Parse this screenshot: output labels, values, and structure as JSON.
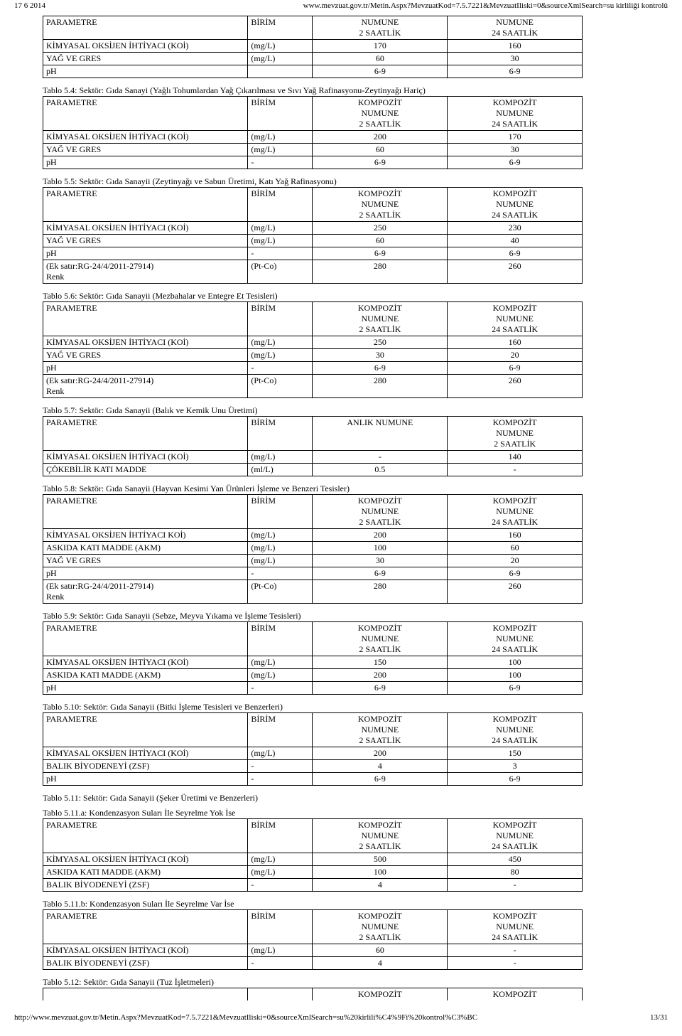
{
  "header": {
    "date": "17 6 2014",
    "url": "www.mevzuat.gov.tr/Metin.Aspx?MevzuatKod=7.5.7221&MevzuatIliski=0&sourceXmlSearch=su kirliliği kontrolü"
  },
  "footer": {
    "url": "http://www.mevzuat.gov.tr/Metin.Aspx?MevzuatKod=7.5.7221&MevzuatIliski=0&sourceXmlSearch=su%20kirlili%C4%9Fi%20kontrol%C3%BC",
    "page": "13/31"
  },
  "hdr": {
    "param": "PARAMETRE",
    "unit": "BİRİM",
    "c2": "KOMPOZİT\nNUMUNE\n2 SAATLİK",
    "c24": "KOMPOZİT\nNUMUNE\n24 SAATLİK",
    "anlik": "ANLIK NUMUNE",
    "c2only": "KOMPOZİT\nNUMUNE\n2 SAATLİK",
    "num2": "NUMUNE\n2 SAATLİK",
    "num24": "NUMUNE\n24 SAATLİK"
  },
  "t0": {
    "rows": [
      [
        "PARAMETRE",
        "BİRİM",
        "NUMUNE\n2 SAATLİK",
        "NUMUNE\n24 SAATLİK"
      ],
      [
        "KİMYASAL OKSİJEN İHTİYACI (KOİ)",
        "(mg/L)",
        "170",
        "160"
      ],
      [
        "YAĞ VE GRES",
        "(mg/L)",
        "60",
        "30"
      ],
      [
        "pH",
        "",
        "6-9",
        "6-9"
      ]
    ]
  },
  "t54": {
    "caption": "Tablo 5.4: Sektör: Gıda Sanayi (Yağlı Tohumlardan Yağ Çıkarılması ve Sıvı Yağ Rafinasyonu-Zeytinyağı Hariç)",
    "rows": [
      [
        "KİMYASAL OKSİJEN İHTİYACI (KOİ)",
        "(mg/L)",
        "200",
        "170"
      ],
      [
        "YAĞ VE GRES",
        "(mg/L)",
        "60",
        "30"
      ],
      [
        "pH",
        "-",
        "6-9",
        "6-9"
      ]
    ]
  },
  "t55": {
    "caption": "Tablo 5.5: Sektör: Gıda Sanayii (Zeytinyağı ve Sabun Üretimi, Katı Yağ Rafinasyonu)",
    "rows": [
      [
        "KİMYASAL OKSİJEN İHTİYACI (KOİ)",
        "(mg/L)",
        "250",
        "230"
      ],
      [
        "YAĞ VE GRES",
        "(mg/L)",
        "60",
        "40"
      ],
      [
        "pH",
        "-",
        "6-9",
        "6-9"
      ],
      [
        "(Ek satır:RG-24/4/2011-27914)\nRenk",
        "(Pt-Co)",
        "280",
        "260"
      ]
    ]
  },
  "t56": {
    "caption": "Tablo 5.6: Sektör: Gıda Sanayii (Mezbahalar ve Entegre Et Tesisleri)",
    "rows": [
      [
        "KİMYASAL OKSİJEN İHTİYACI (KOİ)",
        "(mg/L)",
        "250",
        "160"
      ],
      [
        "YAĞ VE GRES",
        "(mg/L)",
        "30",
        "20"
      ],
      [
        "pH",
        "-",
        "6-9",
        "6-9"
      ],
      [
        "(Ek satır:RG-24/4/2011-27914)\nRenk",
        "(Pt-Co)",
        "280",
        "260"
      ]
    ]
  },
  "t57": {
    "caption": "Tablo 5.7: Sektör: Gıda Sanayii (Balık ve Kemik Unu Üretimi)",
    "rows": [
      [
        "KİMYASAL OKSİJEN İHTİYACI (KOİ)",
        "(mg/L)",
        "-",
        "140"
      ],
      [
        "ÇÖKEBİLİR KATI MADDE",
        "(ml/L)",
        "0.5",
        "-"
      ]
    ]
  },
  "t58": {
    "caption": "Tablo 5.8: Sektör: Gıda Sanayii (Hayvan Kesimi Yan Ürünleri İşleme ve Benzeri Tesisler)",
    "rows": [
      [
        "KİMYASAL OKSİJEN İHTİYACI KOİ)",
        "(mg/L)",
        "200",
        "160"
      ],
      [
        "ASKIDA KATI MADDE (AKM)",
        "(mg/L)",
        "100",
        "60"
      ],
      [
        "YAĞ VE GRES",
        "(mg/L)",
        "30",
        "20"
      ],
      [
        "pH",
        "-",
        "6-9",
        "6-9"
      ],
      [
        "(Ek satır:RG-24/4/2011-27914)\nRenk",
        "(Pt-Co)",
        "280",
        "260"
      ]
    ]
  },
  "t59": {
    "caption": "Tablo 5.9: Sektör: Gıda Sanayii (Sebze, Meyva Yıkama ve İşleme Tesisleri)",
    "rows": [
      [
        "KİMYASAL OKSİJEN İHTİYACI (KOİ)",
        "(mg/L)",
        "150",
        "100"
      ],
      [
        "ASKIDA KATI MADDE (AKM)",
        "(mg/L)",
        "200",
        "100"
      ],
      [
        "pH",
        "-",
        "6-9",
        "6-9"
      ]
    ]
  },
  "t510": {
    "caption": "Tablo 5.10: Sektör: Gıda Sanayii (Bitki İşleme Tesisleri ve Benzerleri)",
    "rows": [
      [
        "KİMYASAL OKSİJEN İHTİYACI (KOİ)",
        "(mg/L)",
        "200",
        "150"
      ],
      [
        "BALIK BİYODENEYİ (ZSF)",
        "-",
        "4",
        "3"
      ],
      [
        "pH",
        "-",
        "6-9",
        "6-9"
      ]
    ]
  },
  "t511": {
    "caption": "Tablo 5.11: Sektör: Gıda Sanayii (Şeker Üretimi ve Benzerleri)"
  },
  "t511a": {
    "caption": "Tablo 5.11.a: Kondenzasyon Suları İle Seyrelme Yok İse",
    "rows": [
      [
        "KİMYASAL OKSİJEN İHTİYACI (KOİ)",
        "(mg/L)",
        "500",
        "450"
      ],
      [
        "ASKIDA KATI MADDE (AKM)",
        "(mg/L)",
        "100",
        "80"
      ],
      [
        "BALIK BİYODENEYİ (ZSF)",
        "-",
        "4",
        "-"
      ]
    ]
  },
  "t511b": {
    "caption": "Tablo 5.11.b: Kondenzasyon Suları İle Seyrelme Var İse",
    "rows": [
      [
        "KİMYASAL OKSİJEN İHTİYACI (KOİ)",
        "(mg/L)",
        "60",
        "-"
      ],
      [
        "BALIK BİYODENEYİ (ZSF)",
        "-",
        "4",
        "-"
      ]
    ]
  },
  "t512": {
    "caption": "Tablo 5.12: Sektör: Gıda Sanayii (Tuz İşletmeleri)",
    "head": [
      "KOMPOZİT",
      "KOMPOZİT"
    ]
  }
}
